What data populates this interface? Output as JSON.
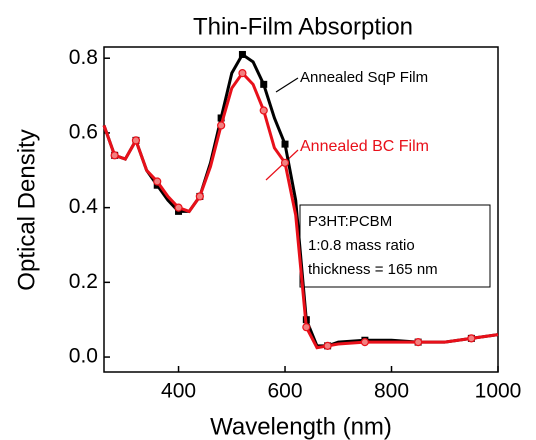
{
  "chart_data": {
    "type": "line",
    "title": "Thin-Film Absorption",
    "x_label": "Wavelength (nm)",
    "y_label": "Optical Density",
    "xlim": [
      260,
      1000
    ],
    "ylim": [
      -0.04,
      0.83
    ],
    "xticks": [
      400,
      600,
      800,
      1000
    ],
    "yticks": [
      {
        "value": 0,
        "label": "0.0"
      },
      0.2,
      0.4,
      0.6,
      0.8
    ],
    "series": [
      {
        "name": "Annealed SqP Film",
        "color": "#000000",
        "marker": "square",
        "x": [
          260,
          280,
          300,
          320,
          340,
          360,
          380,
          400,
          420,
          440,
          460,
          480,
          500,
          520,
          540,
          560,
          580,
          600,
          620,
          640,
          660,
          680,
          700,
          750,
          800,
          850,
          900,
          950,
          1000
        ],
        "values": [
          0.62,
          0.54,
          0.53,
          0.58,
          0.5,
          0.46,
          0.42,
          0.39,
          0.39,
          0.43,
          0.52,
          0.64,
          0.76,
          0.81,
          0.79,
          0.73,
          0.64,
          0.57,
          0.42,
          0.1,
          0.03,
          0.03,
          0.04,
          0.045,
          0.045,
          0.04,
          0.04,
          0.05,
          0.06
        ]
      },
      {
        "name": "Annealed BC Film",
        "color": "#e8101a",
        "marker": "circle",
        "x": [
          260,
          280,
          300,
          320,
          340,
          360,
          380,
          400,
          420,
          440,
          460,
          480,
          500,
          520,
          540,
          560,
          580,
          600,
          620,
          640,
          660,
          680,
          700,
          750,
          800,
          850,
          900,
          950,
          1000
        ],
        "values": [
          0.62,
          0.54,
          0.53,
          0.58,
          0.5,
          0.47,
          0.43,
          0.4,
          0.39,
          0.43,
          0.51,
          0.62,
          0.72,
          0.76,
          0.73,
          0.66,
          0.56,
          0.52,
          0.38,
          0.08,
          0.025,
          0.03,
          0.035,
          0.04,
          0.04,
          0.04,
          0.04,
          0.05,
          0.06
        ]
      }
    ],
    "annotations": [
      "P3HT:PCBM",
      "1:0.8 mass ratio",
      "thickness = 165 nm"
    ]
  }
}
